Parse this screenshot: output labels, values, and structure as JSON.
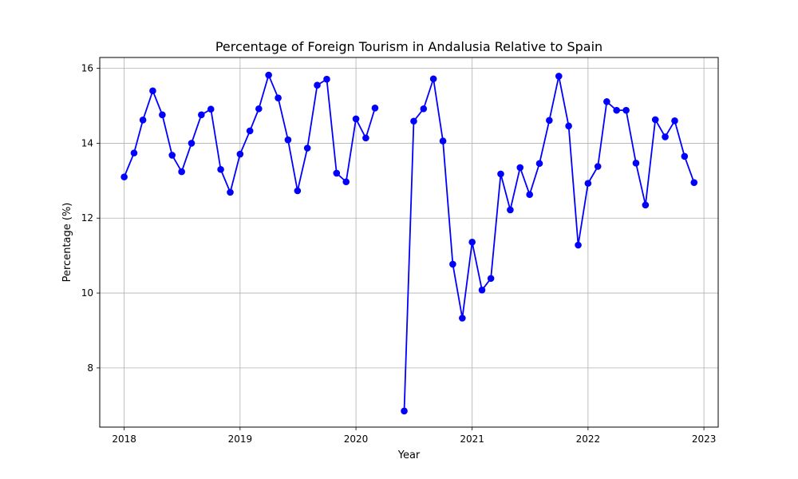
{
  "chart_data": {
    "type": "line",
    "title": "Percentage of Foreign Tourism in Andalusia Relative to Spain",
    "xlabel": "Year",
    "ylabel": "Percentage (%)",
    "grid": true,
    "xlim": [
      "2017-10-16",
      "2023-02-15"
    ],
    "ylim": [
      6.42,
      16.29
    ],
    "xticks": [
      "2018",
      "2019",
      "2020",
      "2021",
      "2022",
      "2023"
    ],
    "yticks": [
      "8",
      "10",
      "12",
      "14",
      "16"
    ],
    "colors": {
      "line": "#0000ff",
      "marker": "#0000ff",
      "grid": "#b0b0b0"
    },
    "series": [
      {
        "x": [
          "2018-01-01",
          "2018-02-01",
          "2018-03-01",
          "2018-04-01",
          "2018-05-01",
          "2018-06-01",
          "2018-07-01",
          "2018-08-01",
          "2018-09-01",
          "2018-10-01",
          "2018-11-01",
          "2018-12-01",
          "2019-01-01",
          "2019-02-01",
          "2019-03-01",
          "2019-04-01",
          "2019-05-01",
          "2019-06-01",
          "2019-07-01",
          "2019-08-01",
          "2019-09-01",
          "2019-10-01",
          "2019-11-01",
          "2019-12-01",
          "2020-01-01",
          "2020-02-01",
          "2020-03-01",
          "2020-06-01",
          "2020-07-01",
          "2020-08-01",
          "2020-09-01",
          "2020-10-01",
          "2020-11-01",
          "2020-12-01",
          "2021-01-01",
          "2021-02-01",
          "2021-03-01",
          "2021-04-01",
          "2021-05-01",
          "2021-06-01",
          "2021-07-01",
          "2021-08-01",
          "2021-09-01",
          "2021-10-01",
          "2021-11-01",
          "2021-12-01",
          "2022-01-01",
          "2022-02-01",
          "2022-03-01",
          "2022-04-01",
          "2022-05-01",
          "2022-06-01",
          "2022-07-01",
          "2022-08-01",
          "2022-09-01",
          "2022-10-01",
          "2022-11-01",
          "2022-12-01"
        ],
        "y": [
          13.1,
          13.74,
          14.62,
          15.4,
          14.76,
          13.68,
          13.24,
          14.0,
          14.76,
          14.91,
          13.3,
          12.69,
          13.71,
          14.33,
          14.92,
          15.82,
          15.21,
          14.09,
          12.73,
          13.87,
          15.55,
          15.71,
          13.2,
          12.97,
          14.65,
          14.14,
          14.94,
          6.85,
          14.59,
          14.92,
          15.72,
          14.06,
          10.77,
          9.33,
          11.36,
          10.08,
          10.39,
          13.18,
          12.22,
          13.35,
          12.63,
          13.46,
          14.61,
          15.79,
          14.46,
          11.28,
          12.93,
          13.38,
          15.11,
          14.88,
          14.88,
          13.47,
          12.35,
          14.63,
          14.17,
          14.6,
          13.65,
          12.95
        ]
      }
    ]
  }
}
